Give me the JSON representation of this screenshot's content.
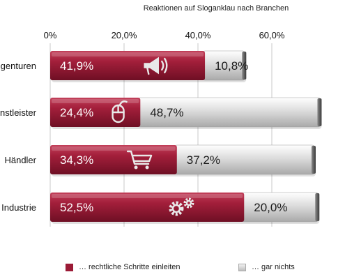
{
  "chart_data": {
    "type": "bar",
    "orientation": "horizontal",
    "stacked": true,
    "title": "Reaktionen auf Sloganklau nach Branchen",
    "x_ticks": [
      "0%",
      "20,0%",
      "40,0%",
      "60,0%"
    ],
    "xlim": [
      0,
      80
    ],
    "categories": [
      "Agenturen",
      "Dienstleister",
      "Händler",
      "Industrie"
    ],
    "category_labels": [
      "gen​turen",
      "nstleister",
      "Händler",
      "Industrie"
    ],
    "series": [
      {
        "name": "… rechtliche Schritte einleiten",
        "values": [
          41.9,
          24.4,
          34.3,
          52.5
        ],
        "labels": [
          "41,9%",
          "24,4%",
          "34,3%",
          "52,5%"
        ],
        "color": "#9b1b36"
      },
      {
        "name": "… gar nichts",
        "values": [
          10.8,
          48.7,
          37.2,
          20.0
        ],
        "labels": [
          "10,8%",
          "48,7%",
          "37,2%",
          "20,0%"
        ],
        "color": "#d4d4d4"
      }
    ],
    "icons": [
      "megaphone-icon",
      "mouse-icon",
      "shopping-cart-icon",
      "gears-icon"
    ],
    "grid": true,
    "legend_position": "bottom"
  }
}
